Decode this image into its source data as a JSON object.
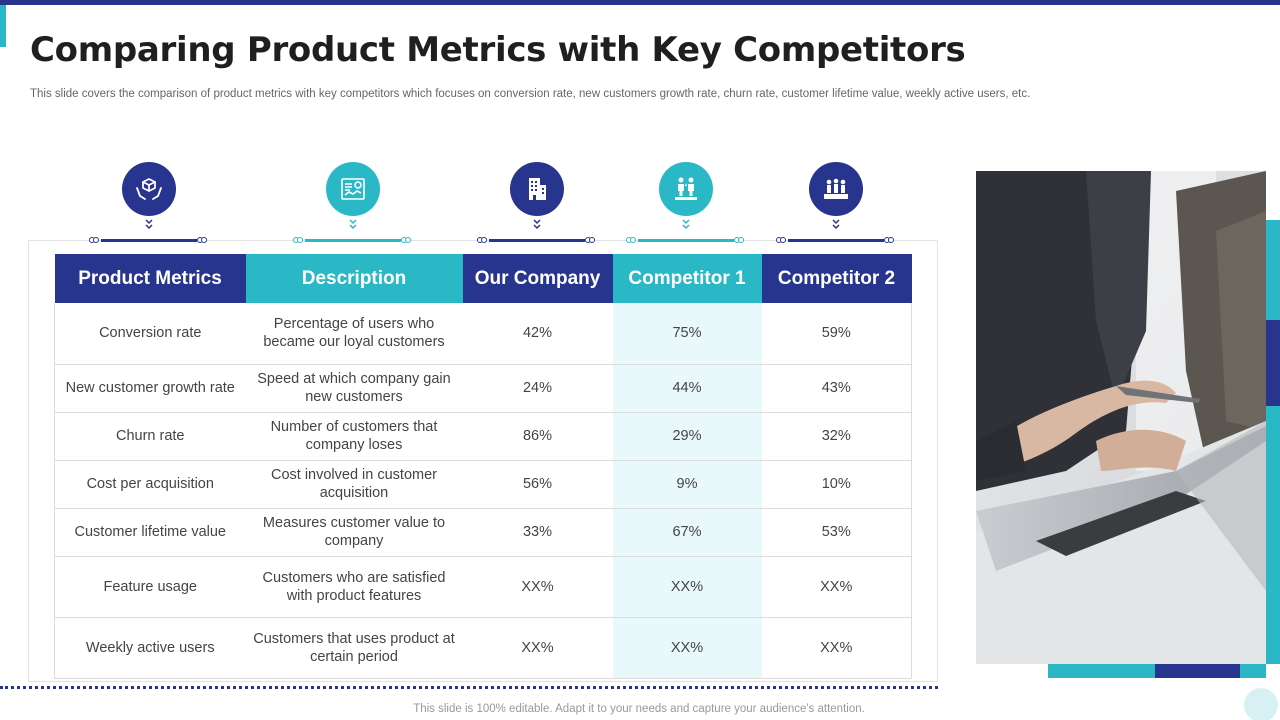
{
  "title": "Comparing Product Metrics with Key Competitors",
  "subtitle": "This slide covers the comparison of product metrics with key competitors which focuses on conversion rate, new customers growth rate, churn rate, customer lifetime value, weekly active users, etc.",
  "icons": [
    "hands-box-icon",
    "document-chart-icon",
    "building-icon",
    "people-podium-icon",
    "team-stage-icon"
  ],
  "headers": [
    "Product Metrics",
    "Description",
    "Our Company",
    "Competitor 1",
    "Competitor 2"
  ],
  "rows": [
    {
      "metric": "Conversion rate",
      "description": "Percentage of users who became our loyal customers",
      "our": "42%",
      "c1": "75%",
      "c2": "59%"
    },
    {
      "metric": "New customer growth rate",
      "description": "Speed at which company gain new customers",
      "our": "24%",
      "c1": "44%",
      "c2": "43%"
    },
    {
      "metric": "Churn rate",
      "description": "Number of customers that company loses",
      "our": "86%",
      "c1": "29%",
      "c2": "32%"
    },
    {
      "metric": "Cost per acquisition",
      "description": "Cost involved in customer acquisition",
      "our": "56%",
      "c1": "9%",
      "c2": "10%"
    },
    {
      "metric": "Customer lifetime value",
      "description": "Measures customer value to company",
      "our": "33%",
      "c1": "67%",
      "c2": "53%"
    },
    {
      "metric": "Feature usage",
      "description": "Customers who are satisfied with product features",
      "our": "XX%",
      "c1": "XX%",
      "c2": "XX%"
    },
    {
      "metric": "Weekly active users",
      "description": "Customers that uses product at certain period",
      "our": "XX%",
      "c1": "XX%",
      "c2": "XX%"
    }
  ],
  "footer": "This slide is 100% editable. Adapt it to your needs and capture your audience's attention.",
  "colors": {
    "navy": "#27358f",
    "teal": "#2bb8c6",
    "highlight": "#e9f8fa"
  }
}
